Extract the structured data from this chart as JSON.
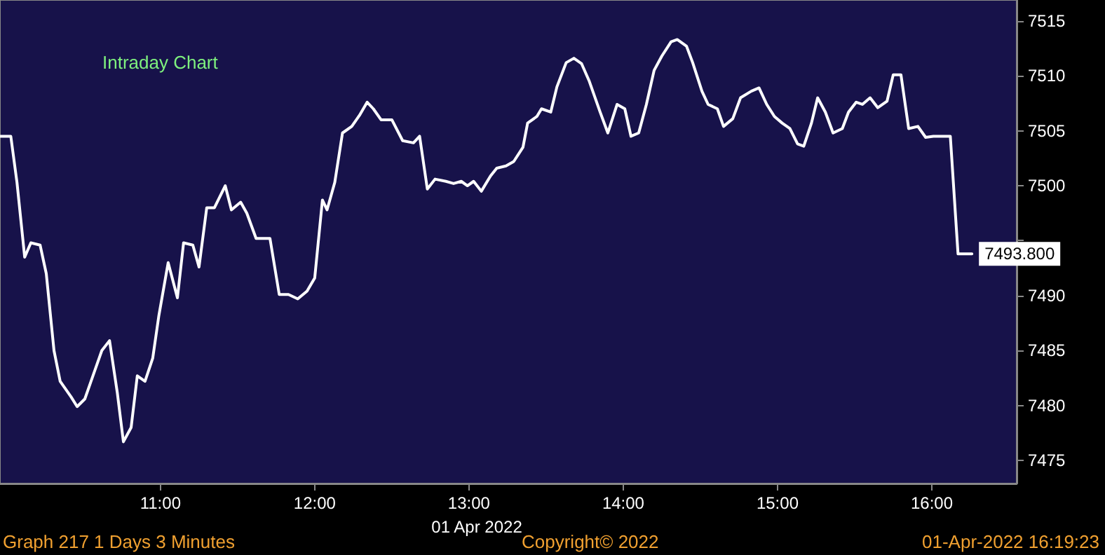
{
  "chart_data": {
    "type": "line",
    "title": "Intraday Chart",
    "xlabel": "01 Apr 2022",
    "x": [
      9.96,
      10.03,
      10.07,
      10.12,
      10.16,
      10.22,
      10.26,
      10.31,
      10.35,
      10.42,
      10.46,
      10.51,
      10.55,
      10.62,
      10.67,
      10.72,
      10.76,
      10.81,
      10.85,
      10.9,
      10.95,
      10.99,
      11.05,
      11.11,
      11.15,
      11.21,
      11.25,
      11.3,
      11.35,
      11.42,
      11.46,
      11.52,
      11.56,
      11.62,
      11.71,
      11.77,
      11.83,
      11.89,
      11.95,
      12.0,
      12.05,
      12.08,
      12.13,
      12.18,
      12.24,
      12.29,
      12.34,
      12.38,
      12.43,
      12.5,
      12.57,
      12.64,
      12.68,
      12.73,
      12.78,
      12.85,
      12.9,
      12.95,
      12.99,
      13.03,
      13.08,
      13.14,
      13.18,
      13.24,
      13.29,
      13.35,
      13.38,
      13.44,
      13.47,
      13.53,
      13.57,
      13.63,
      13.68,
      13.73,
      13.78,
      13.85,
      13.9,
      13.96,
      14.01,
      14.05,
      14.1,
      14.15,
      14.2,
      14.25,
      14.31,
      14.35,
      14.41,
      14.45,
      14.51,
      14.55,
      14.61,
      14.65,
      14.71,
      14.76,
      14.83,
      14.88,
      14.93,
      14.98,
      15.03,
      15.08,
      15.13,
      15.17,
      15.22,
      15.26,
      15.31,
      15.36,
      15.42,
      15.46,
      15.51,
      15.55,
      15.6,
      15.65,
      15.71,
      15.75,
      15.8,
      15.85,
      15.91,
      15.96,
      16.01,
      16.12,
      16.17,
      16.26
    ],
    "series": [
      {
        "color": "#ffffff",
        "values": [
          7504.5,
          7504.5,
          7500.3,
          7493.5,
          7494.8,
          7494.6,
          7492,
          7485,
          7482.2,
          7480.8,
          7479.9,
          7480.6,
          7482.2,
          7485,
          7485.9,
          7481.2,
          7476.7,
          7478,
          7482.7,
          7482.2,
          7484.3,
          7488.2,
          7493,
          7489.8,
          7494.8,
          7494.6,
          7492.6,
          7498,
          7498,
          7500,
          7497.8,
          7498.5,
          7497.5,
          7495.2,
          7495.2,
          7490.1,
          7490.1,
          7489.7,
          7490.4,
          7491.6,
          7498.7,
          7497.8,
          7500.3,
          7504.8,
          7505.4,
          7506.4,
          7507.6,
          7507,
          7506,
          7506,
          7504.1,
          7503.9,
          7504.5,
          7499.7,
          7500.6,
          7500.4,
          7500.2,
          7500.4,
          7500,
          7500.4,
          7499.5,
          7500.9,
          7501.6,
          7501.8,
          7502.2,
          7503.5,
          7505.7,
          7506.3,
          7507,
          7506.7,
          7509,
          7511.2,
          7511.6,
          7511.1,
          7509.5,
          7506.7,
          7504.8,
          7507.4,
          7507,
          7504.5,
          7504.8,
          7507.4,
          7510.5,
          7511.8,
          7513.1,
          7513.3,
          7512.7,
          7511.2,
          7508.6,
          7507.4,
          7507,
          7505.4,
          7506.1,
          7508,
          7508.6,
          7508.9,
          7507.4,
          7506.3,
          7505.7,
          7505.2,
          7503.8,
          7503.6,
          7505.7,
          7508,
          7506.7,
          7504.8,
          7505.2,
          7506.7,
          7507.6,
          7507.4,
          7508,
          7507.1,
          7507.7,
          7510.1,
          7510.1,
          7505.2,
          7505.4,
          7504.4,
          7504.5,
          7504.5,
          7493.8,
          7493.8
        ]
      }
    ],
    "xlim": [
      9.96,
      16.55
    ],
    "xticks": [
      {
        "value": 11,
        "label": "11:00"
      },
      {
        "value": 12,
        "label": "12:00"
      },
      {
        "value": 13,
        "label": "13:00"
      },
      {
        "value": 14,
        "label": "14:00"
      },
      {
        "value": 15,
        "label": "15:00"
      },
      {
        "value": 16,
        "label": "16:00"
      }
    ],
    "ylim": [
      7472.9,
      7516.9
    ],
    "yticks": [
      7475,
      7480,
      7485,
      7490,
      {
        "value": 7495,
        "label": null
      },
      7500,
      7505,
      7510,
      7515
    ],
    "annotations": [
      {
        "text": "7493.800",
        "x": 16.26,
        "y": 7493.8
      },
      "Graph 217 1 Days 3 Minutes",
      "Copyright© 2022",
      "01-Apr-2022 16:19:23"
    ],
    "grid": false,
    "marker": "none",
    "line_style": "solid"
  }
}
